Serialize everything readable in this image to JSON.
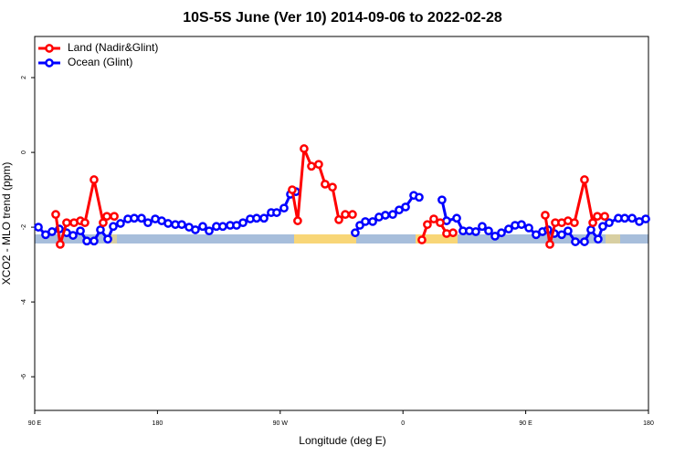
{
  "chart_data": {
    "type": "line",
    "title": "10S-5S June (Ver 10)   2014-09-06 to 2022-02-28",
    "xlabel": "Longitude (deg E)",
    "ylabel": "XCO2 - MLO trend (ppm)",
    "xlim": [
      90,
      540
    ],
    "xticks": [
      {
        "value": 90,
        "label": "90 E"
      },
      {
        "value": 180,
        "label": "180"
      },
      {
        "value": 270,
        "label": "90 W"
      },
      {
        "value": 360,
        "label": "0"
      },
      {
        "value": 450,
        "label": "90 E"
      },
      {
        "value": 540,
        "label": "180"
      }
    ],
    "ylim": [
      -6.9,
      3.1
    ],
    "yticks": [
      2,
      0,
      -2,
      -4,
      -6
    ],
    "legend": "top-left",
    "series": [
      {
        "name": "Land (Nadir&Glint)",
        "color": "#ff0000",
        "x": [
          105.4,
          108.7,
          113.4,
          118.8,
          123.5,
          126.8,
          133.5,
          140.2,
          142.9,
          148.3,
          null,
          278.8,
          282.8,
          287.5,
          292.9,
          298.2,
          302.9,
          308.3,
          313.0,
          317.7,
          323.0,
          null,
          373.9,
          377.9,
          382.6,
          387.3,
          392.0,
          396.7,
          null,
          464.3,
          467.7,
          471.7,
          476.4,
          481.0,
          485.7,
          493.1,
          499.2,
          502.5,
          507.9
        ],
        "values": [
          -1.66,
          -2.46,
          -1.88,
          -1.88,
          -1.83,
          -1.88,
          -0.73,
          -1.88,
          -1.71,
          -1.71,
          null,
          -1.0,
          -1.83,
          0.1,
          -0.37,
          -0.32,
          -0.85,
          -0.93,
          -1.8,
          -1.66,
          -1.66,
          null,
          -2.34,
          -1.93,
          -1.78,
          -1.88,
          -2.17,
          -2.15,
          null,
          -1.68,
          -2.46,
          -1.88,
          -1.88,
          -1.83,
          -1.88,
          -0.73,
          -1.88,
          -1.71,
          -1.71
        ]
      },
      {
        "name": "Ocean (Glint)",
        "color": "#0000ff",
        "x": [
          92.7,
          98.0,
          102.7,
          108.1,
          113.4,
          118.1,
          123.5,
          128.2,
          133.5,
          138.2,
          143.6,
          147.6,
          152.9,
          158.3,
          163.0,
          168.3,
          173.0,
          178.4,
          183.1,
          187.8,
          193.1,
          197.8,
          203.2,
          207.8,
          213.2,
          217.9,
          223.2,
          227.9,
          233.3,
          238.0,
          242.7,
          248.0,
          252.7,
          258.1,
          263.4,
          267.4,
          272.8,
          277.5,
          281.5,
          null,
          325.0,
          328.4,
          332.4,
          337.8,
          342.4,
          347.1,
          352.5,
          357.2,
          361.9,
          367.9,
          371.9,
          null,
          388.6,
          392.0,
          399.4,
          404.0,
          408.7,
          413.4,
          418.1,
          422.8,
          427.5,
          432.2,
          437.5,
          442.2,
          446.9,
          452.3,
          457.6,
          462.3,
          466.3,
          471.0,
          476.4,
          481.0,
          486.4,
          493.1,
          497.8,
          503.1,
          506.5,
          511.2,
          517.9,
          522.6,
          528.0,
          533.3,
          538.0
        ],
        "values": [
          -2.0,
          -2.2,
          -2.12,
          -2.05,
          -2.15,
          -2.22,
          -2.1,
          -2.37,
          -2.37,
          -2.07,
          -2.32,
          -1.98,
          -1.9,
          -1.78,
          -1.76,
          -1.76,
          -1.88,
          -1.78,
          -1.83,
          -1.9,
          -1.93,
          -1.93,
          -2.0,
          -2.07,
          -1.98,
          -2.1,
          -1.98,
          -1.98,
          -1.95,
          -1.95,
          -1.88,
          -1.78,
          -1.76,
          -1.76,
          -1.61,
          -1.61,
          -1.49,
          -1.12,
          -1.05,
          null,
          -2.15,
          -1.95,
          -1.85,
          -1.85,
          -1.73,
          -1.68,
          -1.66,
          -1.54,
          -1.46,
          -1.15,
          -1.2,
          null,
          -1.27,
          -1.83,
          -1.76,
          -2.1,
          -2.1,
          -2.12,
          -1.98,
          -2.1,
          -2.24,
          -2.15,
          -2.05,
          -1.95,
          -1.93,
          -2.02,
          -2.2,
          -2.12,
          -2.07,
          -2.17,
          -2.2,
          -2.1,
          -2.39,
          -2.39,
          -2.07,
          -2.32,
          -1.98,
          -1.88,
          -1.76,
          -1.76,
          -1.76,
          -1.85,
          -1.78
        ]
      }
    ]
  }
}
